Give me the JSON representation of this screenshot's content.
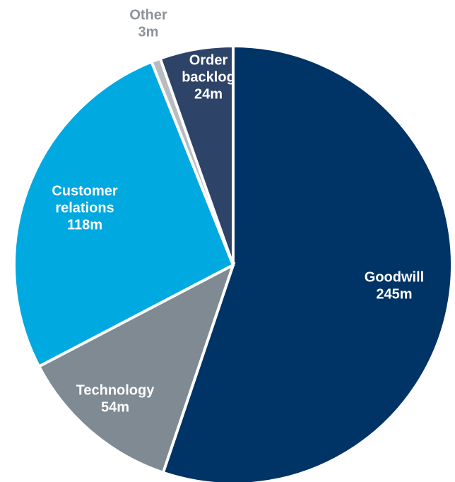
{
  "chart_data": {
    "type": "pie",
    "title": "",
    "start": "12 o'clock",
    "direction": "clockwise",
    "slices": [
      {
        "name": "Goodwill",
        "value_text": "245m",
        "value": 245,
        "color": "#003366",
        "label_color": "#ffffff"
      },
      {
        "name": "Technology",
        "value_text": "54m",
        "value": 54,
        "color": "#7f8a93",
        "label_color": "#ffffff"
      },
      {
        "name": "Customer relations",
        "name_lines": [
          "Customer",
          "relations"
        ],
        "value_text": "118m",
        "value": 118,
        "color": "#00a9e0",
        "label_color": "#ffffff"
      },
      {
        "name": "Other",
        "value_text": "3m",
        "value": 3,
        "color": "#b8bcc0",
        "label_color": "#8c9399"
      },
      {
        "name": "Order backlog",
        "name_lines": [
          "Order",
          "backlog"
        ],
        "value_text": "24m",
        "value": 24,
        "color": "#2d4368",
        "label_color": "#ffffff"
      }
    ]
  }
}
